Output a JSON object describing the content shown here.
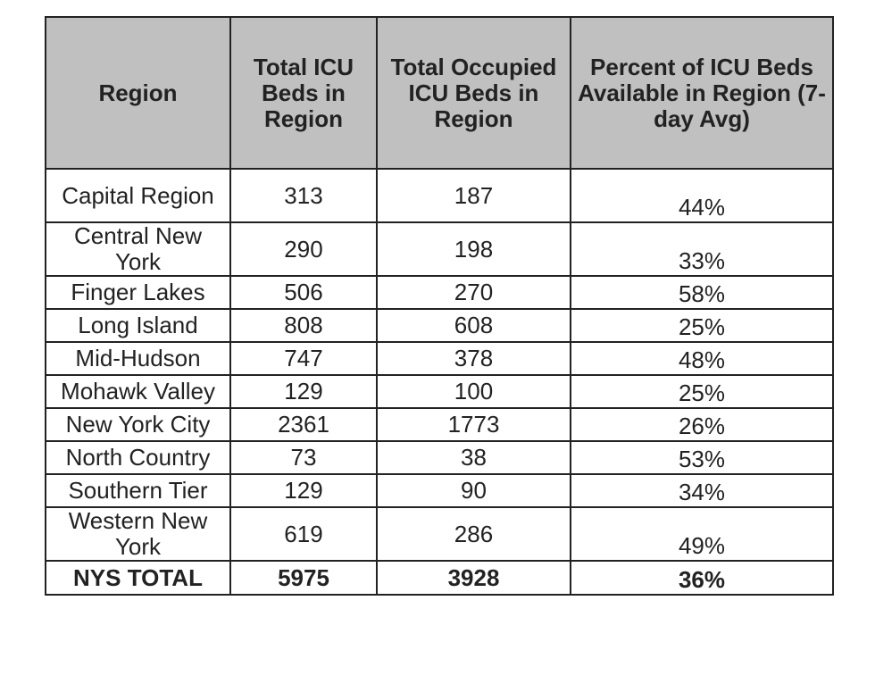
{
  "table": {
    "header": [
      "Region",
      "Total ICU Beds in Region",
      "Total Occupied ICU Beds in Region",
      "Percent of ICU Beds Available in Region (7-day Avg)"
    ],
    "rows": [
      [
        "Capital Region",
        "313",
        "187",
        "44%"
      ],
      [
        "Central New York",
        "290",
        "198",
        "33%"
      ],
      [
        "Finger Lakes",
        "506",
        "270",
        "58%"
      ],
      [
        "Long Island",
        "808",
        "608",
        "25%"
      ],
      [
        "Mid-Hudson",
        "747",
        "378",
        "48%"
      ],
      [
        "Mohawk Valley",
        "129",
        "100",
        "25%"
      ],
      [
        "New York City",
        "2361",
        "1773",
        "26%"
      ],
      [
        "North Country",
        "73",
        "38",
        "53%"
      ],
      [
        "Southern Tier",
        "129",
        "90",
        "34%"
      ],
      [
        "Western New York",
        "619",
        "286",
        "49%"
      ]
    ],
    "total": [
      "NYS TOTAL",
      "5975",
      "3928",
      "36%"
    ]
  }
}
